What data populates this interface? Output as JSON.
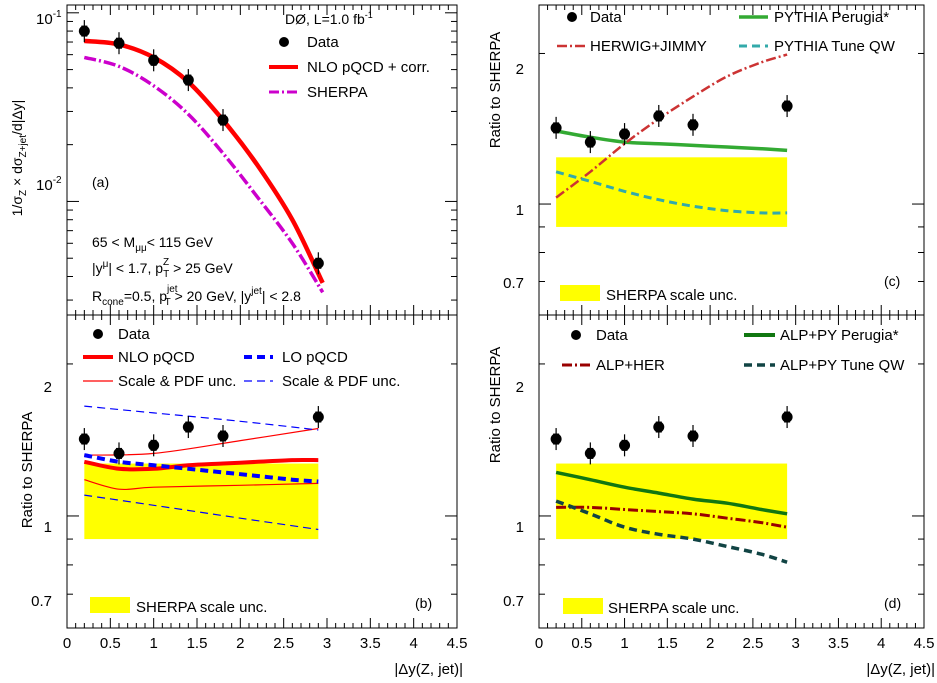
{
  "chart_data": [
    {
      "panel": "(a)",
      "type": "scatter",
      "y_log": true,
      "xlim": [
        0,
        4.5
      ],
      "ylim": [
        0.0025,
        0.11
      ],
      "ylabel": "1/σZ × dσZ+jet/d|Δy|",
      "ylabel_parts": {
        "a": "1/σ",
        "b": "Z",
        "c": " × dσ",
        "d": "Z+jet",
        "e": "/d|Δy|"
      },
      "ytick_labels": {
        "t1a": "10",
        "t1b": "-1",
        "t2a": "10",
        "t2b": "-2"
      },
      "header": {
        "a": "DØ, L=1.0 fb",
        "b": "-1"
      },
      "cuts": {
        "l1a": "65 < M",
        "l1b": "μμ",
        "l1c": "< 115 GeV",
        "l2a": "|y",
        "l2b": "μ",
        "l2c": "| < 1.7, p",
        "l2d": "Z",
        "l2e": "T",
        "l2f": " > 25 GeV",
        "l3a": "R",
        "l3b": "cone",
        "l3c": "=0.5,  p",
        "l3d": "jet",
        "l3e": "T",
        "l3f": " > 20 GeV,  |y",
        "l3g": "jet",
        "l3h": "| < 2.8"
      },
      "legend": {
        "data": "Data",
        "nlo": "NLO pQCD + corr.",
        "sherpa": "SHERPA"
      },
      "series": [
        {
          "name": "Data",
          "color": "#000000",
          "x": [
            0.2,
            0.6,
            1.0,
            1.4,
            1.8,
            2.9
          ],
          "y": [
            0.08,
            0.069,
            0.056,
            0.044,
            0.027,
            0.0047
          ]
        },
        {
          "name": "NLO pQCD + corr.",
          "color": "#ff0000",
          "x": [
            0.2,
            0.6,
            1.0,
            1.4,
            1.8,
            2.2,
            2.6,
            2.95
          ],
          "y": [
            0.071,
            0.068,
            0.058,
            0.043,
            0.027,
            0.0155,
            0.008,
            0.0037
          ]
        },
        {
          "name": "SHERPA",
          "color": "#cc00cc",
          "x": [
            0.2,
            0.6,
            1.0,
            1.4,
            1.8,
            2.2,
            2.6,
            2.95
          ],
          "y": [
            0.058,
            0.052,
            0.041,
            0.029,
            0.018,
            0.0105,
            0.006,
            0.0033
          ]
        }
      ]
    },
    {
      "panel": "(b)",
      "type": "scatter",
      "y_log": true,
      "xlim": [
        0,
        4.5
      ],
      "ylim": [
        0.6,
        2.5
      ],
      "ylabel": "Ratio to SHERPA",
      "xlabel": "|Δy(Z, jet)|",
      "xtick_labels": [
        "0",
        "0.5",
        "1",
        "1.5",
        "2",
        "2.5",
        "3",
        "3.5",
        "4",
        "4.5"
      ],
      "ytick_labels": [
        "0.7",
        "1",
        "2"
      ],
      "legend": {
        "data": "Data",
        "nlo": "NLO pQCD",
        "nlo_unc": "Scale & PDF unc.",
        "lo": "LO pQCD",
        "lo_unc": "Scale & PDF unc.",
        "band": "SHERPA scale unc."
      },
      "band": {
        "name": "SHERPA scale unc.",
        "color": "#ffff00",
        "x": [
          0.2,
          2.9
        ],
        "low": [
          0.93,
          0.9
        ],
        "high": [
          1.25,
          1.27
        ]
      },
      "series": [
        {
          "name": "Data",
          "color": "#000000",
          "x": [
            0.2,
            0.6,
            1.0,
            1.4,
            1.8,
            2.9
          ],
          "y": [
            1.42,
            1.33,
            1.38,
            1.5,
            1.44,
            1.57
          ]
        },
        {
          "name": "NLO pQCD",
          "color": "#ff0000",
          "x": [
            0.2,
            0.6,
            1.0,
            1.4,
            1.8,
            2.2,
            2.6,
            2.9
          ],
          "y": [
            1.28,
            1.24,
            1.24,
            1.26,
            1.27,
            1.28,
            1.29,
            1.29
          ]
        },
        {
          "name": "NLO Scale & PDF unc. (upper)",
          "color": "#ff0000",
          "x": [
            0.2,
            1.0,
            2.0,
            2.9
          ],
          "y": [
            1.32,
            1.33,
            1.41,
            1.49
          ]
        },
        {
          "name": "NLO Scale & PDF unc. (lower)",
          "color": "#ff0000",
          "x": [
            0.2,
            0.6,
            1.0,
            2.0,
            2.9
          ],
          "y": [
            1.18,
            1.13,
            1.14,
            1.15,
            1.16
          ]
        },
        {
          "name": "LO pQCD",
          "color": "#0000ff",
          "x": [
            0.2,
            0.6,
            1.0,
            1.4,
            1.8,
            2.2,
            2.6,
            2.9
          ],
          "y": [
            1.32,
            1.28,
            1.26,
            1.24,
            1.22,
            1.2,
            1.18,
            1.17
          ]
        },
        {
          "name": "LO Scale & PDF unc. (upper)",
          "color": "#0000ff",
          "x": [
            0.2,
            1.0,
            2.0,
            2.9
          ],
          "y": [
            1.65,
            1.6,
            1.54,
            1.48
          ]
        },
        {
          "name": "LO Scale & PDF unc. (lower)",
          "color": "#0000ff",
          "x": [
            0.2,
            1.0,
            2.0,
            2.9
          ],
          "y": [
            1.1,
            1.05,
            0.99,
            0.94
          ]
        }
      ]
    },
    {
      "panel": "(c)",
      "type": "scatter",
      "y_log": true,
      "xlim": [
        0,
        4.5
      ],
      "ylim": [
        0.6,
        2.5
      ],
      "ylabel": "Ratio to SHERPA",
      "ytick_labels": [
        "0.7",
        "1",
        "2"
      ],
      "legend": {
        "data": "Data",
        "perugia": "PYTHIA Perugia*",
        "herwig": "HERWIG+JIMMY",
        "qw": "PYTHIA Tune QW",
        "band": "SHERPA scale unc."
      },
      "band": {
        "name": "SHERPA scale unc.",
        "color": "#ffff00",
        "x": [
          0.2,
          2.9
        ],
        "low": [
          0.93,
          0.9
        ],
        "high": [
          1.2,
          1.24
        ]
      },
      "series": [
        {
          "name": "Data",
          "color": "#000000",
          "x": [
            0.2,
            0.6,
            1.0,
            1.4,
            1.8,
            2.9
          ],
          "y": [
            1.42,
            1.33,
            1.38,
            1.5,
            1.44,
            1.57
          ]
        },
        {
          "name": "PYTHIA Perugia*",
          "color": "#33aa33",
          "x": [
            0.2,
            0.6,
            1.0,
            1.4,
            1.8,
            2.2,
            2.6,
            2.9
          ],
          "y": [
            1.4,
            1.36,
            1.33,
            1.32,
            1.31,
            1.3,
            1.29,
            1.28
          ]
        },
        {
          "name": "HERWIG+JIMMY",
          "color": "#cc3333",
          "x": [
            0.2,
            0.6,
            1.0,
            1.4,
            1.8,
            2.2,
            2.6,
            2.9
          ],
          "y": [
            1.03,
            1.16,
            1.32,
            1.48,
            1.64,
            1.8,
            1.92,
            1.99
          ]
        },
        {
          "name": "PYTHIA Tune QW",
          "color": "#33aaaa",
          "x": [
            0.2,
            0.6,
            1.0,
            1.4,
            1.8,
            2.2,
            2.6,
            2.9
          ],
          "y": [
            1.16,
            1.11,
            1.06,
            1.02,
            0.99,
            0.97,
            0.96,
            0.96
          ]
        }
      ]
    },
    {
      "panel": "(d)",
      "type": "scatter",
      "y_log": true,
      "xlim": [
        0,
        4.5
      ],
      "ylim": [
        0.6,
        2.5
      ],
      "ylabel": "Ratio to SHERPA",
      "xlabel": "|Δy(Z, jet)|",
      "xtick_labels": [
        "0",
        "0.5",
        "1",
        "1.5",
        "2",
        "2.5",
        "3",
        "3.5",
        "4",
        "4.5"
      ],
      "ytick_labels": [
        "0.7",
        "1",
        "2"
      ],
      "legend": {
        "data": "Data",
        "perugia": "ALP+PY Perugia*",
        "her": "ALP+HER",
        "qw": "ALP+PY Tune QW",
        "band": "SHERPA scale unc."
      },
      "band": {
        "name": "SHERPA scale unc.",
        "color": "#ffff00",
        "x": [
          0.2,
          2.9
        ],
        "low": [
          0.93,
          0.9
        ],
        "high": [
          1.2,
          1.27
        ]
      },
      "series": [
        {
          "name": "Data",
          "color": "#000000",
          "x": [
            0.2,
            0.6,
            1.0,
            1.4,
            1.8,
            2.9
          ],
          "y": [
            1.42,
            1.33,
            1.38,
            1.5,
            1.44,
            1.57
          ]
        },
        {
          "name": "ALP+PY Perugia*",
          "color": "#117711",
          "x": [
            0.2,
            0.6,
            1.0,
            1.4,
            1.8,
            2.2,
            2.6,
            2.9
          ],
          "y": [
            1.22,
            1.18,
            1.14,
            1.11,
            1.08,
            1.06,
            1.03,
            1.01
          ]
        },
        {
          "name": "ALP+HER",
          "color": "#990000",
          "x": [
            0.2,
            0.6,
            1.0,
            1.4,
            1.8,
            2.2,
            2.6,
            2.9
          ],
          "y": [
            1.04,
            1.04,
            1.03,
            1.02,
            1.01,
            0.99,
            0.97,
            0.95
          ]
        },
        {
          "name": "ALP+PY Tune QW",
          "color": "#114444",
          "x": [
            0.2,
            0.6,
            1.0,
            1.4,
            1.8,
            2.2,
            2.6,
            2.9
          ],
          "y": [
            1.07,
            1.01,
            0.95,
            0.92,
            0.9,
            0.87,
            0.84,
            0.81
          ]
        }
      ]
    }
  ]
}
